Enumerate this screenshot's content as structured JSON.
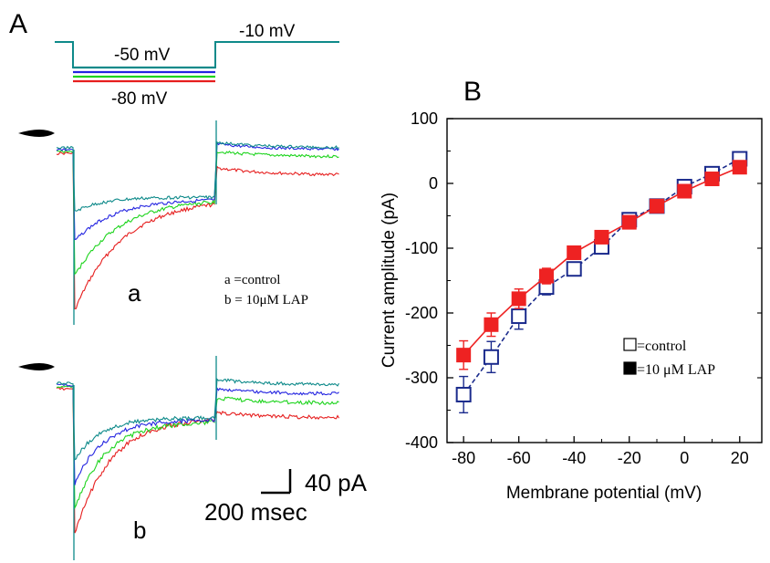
{
  "panel_a": {
    "label": "A",
    "protocol": {
      "hold_label": "-10 mV",
      "step_top_label": "-50 mV",
      "step_bottom_label": "-80 mV",
      "step_colors": [
        "#0e8a8a",
        "#2424e0",
        "#1ed41e",
        "#e61e1e"
      ]
    },
    "trace_a": {
      "label": "a",
      "legend": [
        "a =control",
        "b = 10μM LAP"
      ]
    },
    "trace_b": {
      "label": "b"
    },
    "scale_bar": {
      "current": "40 pA",
      "time": "200 msec"
    }
  },
  "chart_data": {
    "type": "line",
    "panel_label": "B",
    "xlabel": "Membrane potential (mV)",
    "ylabel": "Current amplitude (pA)",
    "xlim": [
      -86,
      28
    ],
    "ylim": [
      -400,
      100
    ],
    "x_ticks": [
      -80,
      -60,
      -40,
      -20,
      0,
      20
    ],
    "y_ticks": [
      100,
      0,
      -100,
      -200,
      -300,
      -400
    ],
    "x": [
      -80,
      -70,
      -60,
      -50,
      -40,
      -30,
      -20,
      -10,
      0,
      10,
      20
    ],
    "series": [
      {
        "name": "=control",
        "marker": "open-square",
        "color": "#1a2a8c",
        "linestyle": "dashed",
        "values": [
          -326,
          -268,
          -205,
          -160,
          -132,
          -98,
          -56,
          -35,
          -5,
          15,
          38
        ],
        "errors": [
          28,
          24,
          20,
          12,
          10,
          8,
          5,
          4,
          4,
          5,
          6
        ]
      },
      {
        "name": "=10 μM LAP",
        "marker": "filled-square",
        "color": "#ee2222",
        "linestyle": "solid",
        "values": [
          -265,
          -218,
          -178,
          -143,
          -107,
          -83,
          -60,
          -35,
          -12,
          7,
          25
        ],
        "errors": [
          22,
          18,
          15,
          12,
          10,
          7,
          5,
          5,
          4,
          5,
          6
        ]
      }
    ],
    "legend_location": "lower-right"
  }
}
